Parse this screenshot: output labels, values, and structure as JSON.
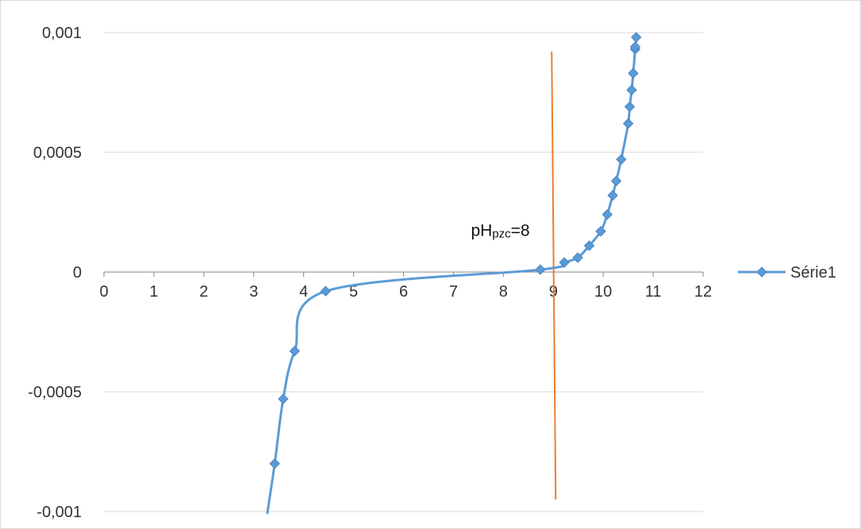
{
  "chart_data": {
    "type": "scatter",
    "title": "",
    "xlabel": "",
    "ylabel": "",
    "xlim": [
      0,
      12
    ],
    "ylim": [
      -0.001,
      0.001
    ],
    "x_ticks": [
      0,
      1,
      2,
      3,
      4,
      5,
      6,
      7,
      8,
      9,
      10,
      11,
      12
    ],
    "x_tick_labels": [
      "0",
      "1",
      "2",
      "3",
      "4",
      "5",
      "6",
      "7",
      "8",
      "9",
      "10",
      "11",
      "12"
    ],
    "y_ticks": [
      -0.001,
      -0.0005,
      0,
      0.0005,
      0.001
    ],
    "y_tick_labels": [
      "-0,001",
      "-0,0005",
      "0",
      "0,0005",
      "0,001"
    ],
    "grid": "horizontal",
    "legend_position": "right",
    "colors": {
      "series": "#5b9bd5",
      "marker_line": "#4a86c5",
      "vertical_line": "#ed7d31",
      "grid": "#d9d9d9",
      "axis": "#868686"
    },
    "series": [
      {
        "name": "Série1",
        "x": [
          3.27,
          3.42,
          3.59,
          3.82,
          4.44,
          8.74,
          9.22,
          9.49,
          9.72,
          9.95,
          10.08,
          10.19,
          10.26,
          10.36,
          10.5,
          10.53,
          10.57,
          10.6,
          10.64,
          10.64,
          10.66
        ],
        "y": [
          -0.00101,
          -0.0008,
          -0.00053,
          -0.00033,
          -8e-05,
          1e-05,
          4e-05,
          6e-05,
          0.00011,
          0.00017,
          0.00024,
          0.00032,
          0.00038,
          0.00047,
          0.00062,
          0.00069,
          0.00076,
          0.00083,
          0.00093,
          0.00094,
          0.00098
        ]
      }
    ],
    "vertical_line": {
      "x": 9,
      "y_range": [
        -0.00095,
        0.00092
      ]
    },
    "annotation": {
      "main": "pH",
      "sub": "pzc",
      "suffix": "=8",
      "at_x": 7.35,
      "at_y": 0.00015
    }
  }
}
